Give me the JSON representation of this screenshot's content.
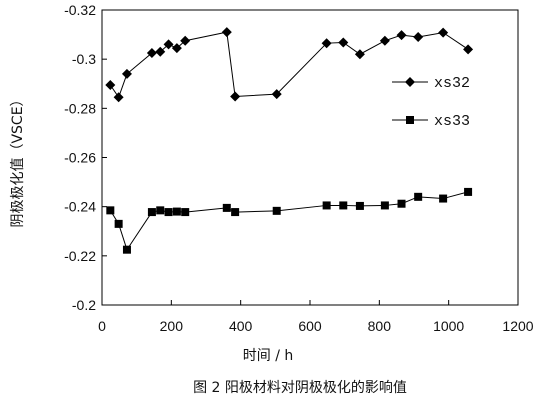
{
  "chart_data": {
    "type": "line",
    "title": "",
    "caption": "图 2    阳极材料对阴极极化的影响值",
    "xlabel": "时间 / h",
    "ylabel": "阴极极化值（VSCE）",
    "xlim": [
      0,
      1200
    ],
    "ylim": [
      -0.32,
      -0.2
    ],
    "y_reversed": true,
    "x_ticks": [
      "0",
      "200",
      "400",
      "600",
      "800",
      "1000",
      "1200"
    ],
    "x_tick_values": [
      0,
      200,
      400,
      600,
      800,
      1000,
      1200
    ],
    "y_ticks": [
      "-0.32",
      "-0.3",
      "-0.28",
      "-0.26",
      "-0.24",
      "-0.22",
      "-0.2"
    ],
    "y_tick_values": [
      -0.32,
      -0.3,
      -0.28,
      -0.26,
      -0.24,
      -0.22,
      -0.2
    ],
    "grid": false,
    "legend_position": "right",
    "series": [
      {
        "name": "xs32",
        "marker": "diamond",
        "color": "#000000",
        "x": [
          24,
          48,
          72,
          144,
          168,
          192,
          216,
          240,
          360,
          384,
          504,
          648,
          696,
          744,
          816,
          864,
          912,
          984,
          1056
        ],
        "y": [
          -0.2895,
          -0.2845,
          -0.294,
          -0.3025,
          -0.303,
          -0.306,
          -0.3045,
          -0.3075,
          -0.311,
          -0.2848,
          -0.2858,
          -0.3065,
          -0.3068,
          -0.302,
          -0.3075,
          -0.3098,
          -0.309,
          -0.3108,
          -0.304
        ]
      },
      {
        "name": "xs33",
        "marker": "square",
        "color": "#000000",
        "x": [
          24,
          48,
          72,
          144,
          168,
          192,
          216,
          240,
          360,
          384,
          504,
          648,
          696,
          744,
          816,
          864,
          912,
          984,
          1056
        ],
        "y": [
          -0.2385,
          -0.233,
          -0.2225,
          -0.2378,
          -0.2385,
          -0.2378,
          -0.238,
          -0.2378,
          -0.2395,
          -0.2378,
          -0.2383,
          -0.2405,
          -0.2405,
          -0.2403,
          -0.2405,
          -0.2412,
          -0.244,
          -0.2433,
          -0.246
        ]
      }
    ]
  }
}
